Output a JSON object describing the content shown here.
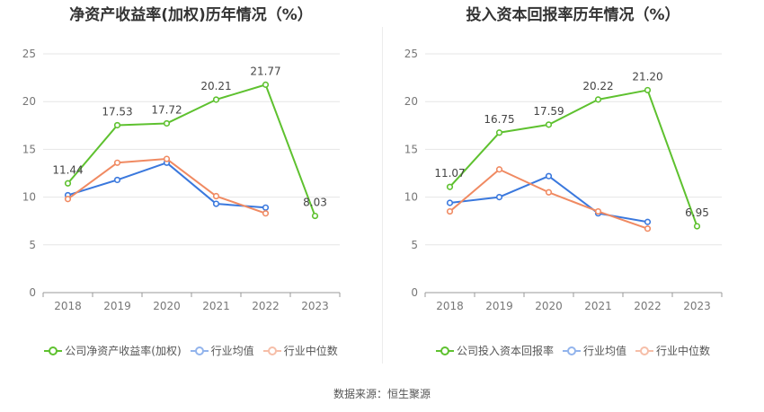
{
  "colors": {
    "company": "#5ec12f",
    "industry_avg": "#3a78dd",
    "industry_median": "#f08a62"
  },
  "footer": "数据来源：恒生聚源",
  "chart_data": [
    {
      "type": "line",
      "title": "净资产收益率(加权)历年情况（%）",
      "categories": [
        "2018",
        "2019",
        "2020",
        "2021",
        "2022",
        "2023"
      ],
      "ylim": [
        0,
        25
      ],
      "yticks": [
        0,
        5,
        10,
        15,
        20,
        25
      ],
      "grid": true,
      "legend": "bottom",
      "series": [
        {
          "name": "公司净资产收益率(加权)",
          "color_key": "company",
          "values": [
            11.44,
            17.53,
            17.72,
            20.21,
            21.77,
            8.03
          ],
          "labels": true
        },
        {
          "name": "行业均值",
          "color_key": "industry_avg",
          "values": [
            10.2,
            11.8,
            13.6,
            9.3,
            8.9,
            null
          ],
          "labels": false
        },
        {
          "name": "行业中位数",
          "color_key": "industry_median",
          "values": [
            9.8,
            13.6,
            14.0,
            10.1,
            8.3,
            null
          ],
          "labels": false
        }
      ]
    },
    {
      "type": "line",
      "title": "投入资本回报率历年情况（%）",
      "categories": [
        "2018",
        "2019",
        "2020",
        "2021",
        "2022",
        "2023"
      ],
      "ylim": [
        0,
        25
      ],
      "yticks": [
        0,
        5,
        10,
        15,
        20,
        25
      ],
      "grid": true,
      "legend": "bottom",
      "series": [
        {
          "name": "公司投入资本回报率",
          "color_key": "company",
          "values": [
            11.07,
            16.75,
            17.59,
            20.22,
            21.2,
            6.95
          ],
          "labels": true
        },
        {
          "name": "行业均值",
          "color_key": "industry_avg",
          "values": [
            9.4,
            10.0,
            12.2,
            8.3,
            7.4,
            null
          ],
          "labels": false
        },
        {
          "name": "行业中位数",
          "color_key": "industry_median",
          "values": [
            8.5,
            12.9,
            10.5,
            8.5,
            6.7,
            null
          ],
          "labels": false
        }
      ]
    }
  ]
}
